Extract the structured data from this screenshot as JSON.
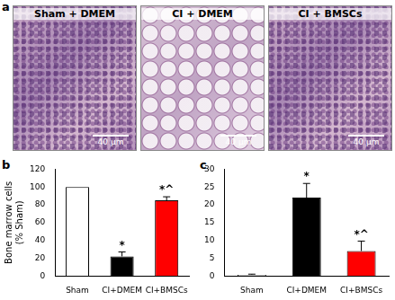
{
  "panel_labels": [
    "a",
    "b",
    "c"
  ],
  "micrographs": [
    {
      "title": "Sham + DMEM",
      "scale_bar": "40 μm"
    },
    {
      "title": "CI + DMEM",
      "scale_bar": "40 μm"
    },
    {
      "title": "CI + BMSCs",
      "scale_bar": "40 μm"
    }
  ],
  "chart_data": [
    {
      "type": "bar",
      "y_label": [
        "Bone marrow cells",
        "(% Sham)"
      ],
      "categories": [
        "Sham",
        "CI+DMEM",
        "CI+BMSCs"
      ],
      "values": [
        100,
        22,
        85
      ],
      "errors": [
        0,
        5,
        4
      ],
      "colors": [
        "#ffffff",
        "#000000",
        "#ff0000"
      ],
      "annotations": [
        null,
        "*",
        "*^"
      ],
      "ylim": [
        0,
        120
      ],
      "yticks": [
        0,
        20,
        40,
        60,
        80,
        100,
        120
      ],
      "grid": false
    },
    {
      "type": "bar",
      "categories": [
        "Sham",
        "CI+DMEM",
        "CI+BMSCs"
      ],
      "values": [
        0.3,
        22,
        7
      ],
      "errors": [
        0.2,
        4,
        2.8
      ],
      "colors": [
        "#ffffff",
        "#000000",
        "#ff0000"
      ],
      "annotations": [
        null,
        "*",
        "*^"
      ],
      "ylim": [
        0,
        30
      ],
      "yticks": [
        0,
        5,
        10,
        15,
        20,
        25,
        30
      ],
      "grid": false
    }
  ]
}
